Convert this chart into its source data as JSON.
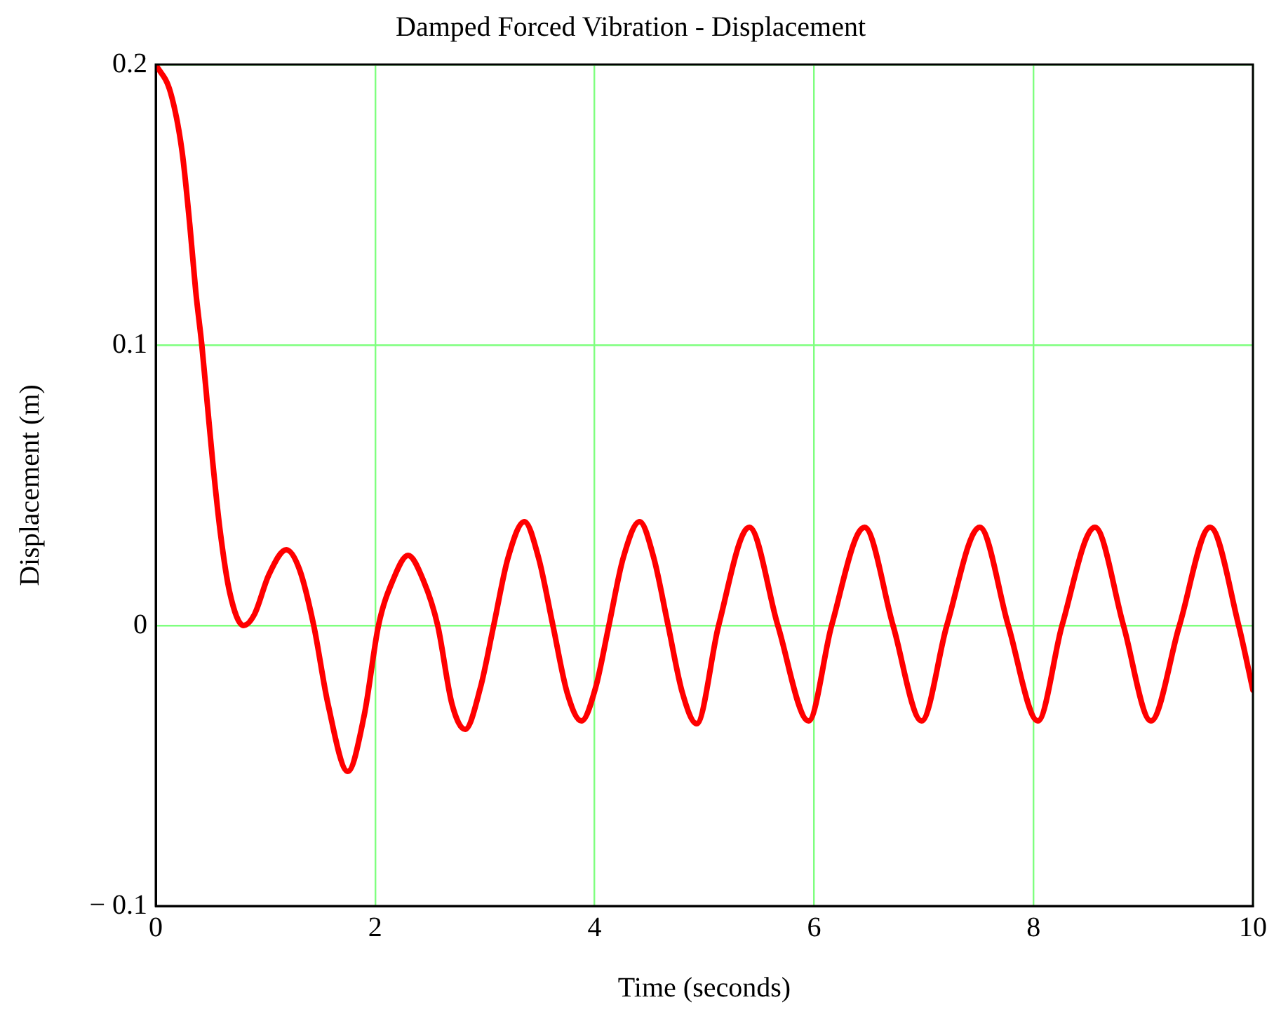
{
  "chart_data": {
    "type": "line",
    "title": "Damped Forced Vibration - Displacement",
    "xlabel": "Time (seconds)",
    "ylabel": "Displacement (m)",
    "x": [
      0,
      0.135,
      0.24,
      0.31,
      0.365,
      0.42,
      0.47,
      0.52,
      0.586,
      0.673,
      0.8,
      0.9,
      1.03,
      1.19,
      1.31,
      1.44,
      1.57,
      1.75,
      1.9,
      2.03,
      2.16,
      2.3,
      2.44,
      2.57,
      2.7,
      2.82,
      2.96,
      3.08,
      3.21,
      3.36,
      3.49,
      3.62,
      3.75,
      3.88,
      4.01,
      4.13,
      4.26,
      4.41,
      4.54,
      4.67,
      4.8,
      4.93,
      5.13,
      5.41,
      5.67,
      5.95,
      6.16,
      6.46,
      6.72,
      6.98,
      7.21,
      7.51,
      7.77,
      8.04,
      8.26,
      8.56,
      8.82,
      9.07,
      9.33,
      9.61,
      9.87,
      10
    ],
    "series": [
      {
        "color": "#ff0000",
        "values": [
          0.2,
          0.19,
          0.169,
          0.143,
          0.119,
          0.1,
          0.079,
          0.058,
          0.034,
          0.012,
          0,
          0.004,
          0.018,
          0.027,
          0.02,
          0,
          -0.028,
          -0.052,
          -0.032,
          0,
          0.016,
          0.025,
          0.016,
          0,
          -0.028,
          -0.037,
          -0.022,
          0,
          0.024,
          0.037,
          0.024,
          0,
          -0.024,
          -0.034,
          -0.022,
          0,
          0.024,
          0.037,
          0.024,
          0,
          -0.024,
          -0.035,
          0,
          0.035,
          0,
          -0.034,
          0,
          0.035,
          0,
          -0.034,
          0,
          0.035,
          0,
          -0.034,
          0,
          0.035,
          0,
          -0.034,
          0,
          0.035,
          0,
          -0.023
        ]
      }
    ],
    "xlim": [
      0,
      10
    ],
    "xticks": [
      0,
      2,
      4,
      6,
      8,
      10
    ],
    "ylim": [
      -0.1,
      0.2
    ],
    "yticks": [
      {
        "value": -0.1,
        "label": "− 0.1"
      },
      0,
      0.1,
      0.2
    ],
    "grid": true,
    "marker": "none",
    "line_style": "solid"
  }
}
